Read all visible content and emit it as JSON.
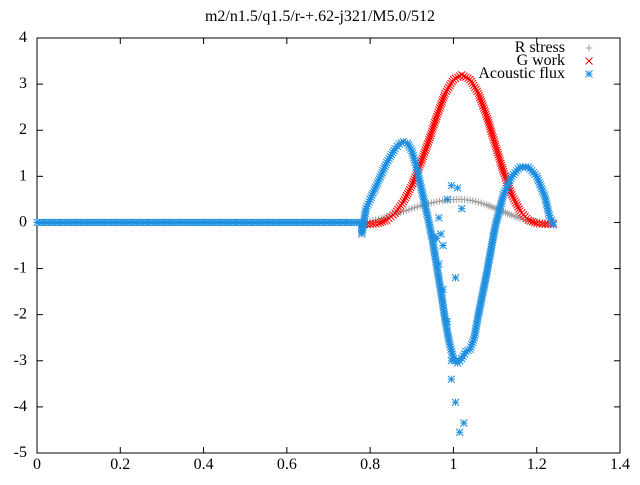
{
  "chart_data": {
    "type": "scatter",
    "title": "m2/n1.5/q1.5/r-+.62-j321/M5.0/512",
    "xlabel": "",
    "ylabel": "",
    "xlim": [
      0,
      1.4
    ],
    "ylim": [
      -5,
      4
    ],
    "x_ticks": [
      "0",
      "0.2",
      "0.4",
      "0.6",
      "0.8",
      "1",
      "1.2",
      "1.4"
    ],
    "y_ticks": [
      "4",
      "3",
      "2",
      "1",
      "0",
      "-1",
      "-2",
      "-3",
      "-4",
      "-5"
    ],
    "grid": false,
    "legend_position": "top-right",
    "series": [
      {
        "name": "R stress",
        "marker": "plus",
        "color": "#a0a0a0",
        "x": [
          0.78,
          0.8,
          0.82,
          0.84,
          0.86,
          0.88,
          0.9,
          0.92,
          0.94,
          0.96,
          0.98,
          1.0,
          1.02,
          1.04,
          1.06,
          1.08,
          1.1,
          1.12,
          1.14,
          1.16,
          1.18,
          1.2,
          1.22,
          1.24
        ],
        "y": [
          0.0,
          0.03,
          0.07,
          0.12,
          0.18,
          0.24,
          0.3,
          0.36,
          0.41,
          0.45,
          0.48,
          0.5,
          0.5,
          0.48,
          0.44,
          0.38,
          0.31,
          0.23,
          0.16,
          0.09,
          0.04,
          0.01,
          0.0,
          0.0
        ]
      },
      {
        "name": "G work",
        "marker": "cross",
        "color": "#ff0000",
        "x": [
          0.78,
          0.8,
          0.82,
          0.84,
          0.86,
          0.88,
          0.9,
          0.92,
          0.94,
          0.96,
          0.98,
          1.0,
          1.02,
          1.04,
          1.06,
          1.08,
          1.1,
          1.12,
          1.14,
          1.16,
          1.18,
          1.2,
          1.22,
          1.24
        ],
        "y": [
          -0.05,
          -0.04,
          -0.02,
          0.05,
          0.2,
          0.45,
          0.8,
          1.25,
          1.75,
          2.3,
          2.8,
          3.1,
          3.2,
          3.1,
          2.8,
          2.3,
          1.7,
          1.1,
          0.6,
          0.25,
          0.05,
          -0.02,
          -0.04,
          -0.03
        ]
      },
      {
        "name": "Acoustic flux",
        "marker": "star",
        "color": "#1e8fe0",
        "x": [
          0.0,
          0.05,
          0.1,
          0.15,
          0.2,
          0.25,
          0.3,
          0.35,
          0.4,
          0.45,
          0.5,
          0.55,
          0.6,
          0.65,
          0.7,
          0.75,
          0.78,
          0.78,
          0.79,
          0.8,
          0.82,
          0.84,
          0.86,
          0.87,
          0.88,
          0.89,
          0.9,
          0.91,
          0.92,
          0.93,
          0.94,
          0.95,
          0.96,
          0.97,
          0.98,
          0.99,
          1.0,
          1.01,
          1.02,
          1.03,
          1.04,
          1.05,
          1.06,
          1.08,
          1.1,
          1.12,
          1.14,
          1.16,
          1.18,
          1.2,
          1.22,
          1.23,
          1.24,
          0.955,
          0.965,
          0.975,
          0.985,
          0.995,
          1.005,
          1.015,
          1.025,
          0.96,
          0.97,
          0.985,
          0.995,
          1.01,
          1.02,
          0.965,
          0.975,
          0.995,
          1.005
        ],
        "y": [
          0.0,
          0.0,
          0.0,
          0.0,
          0.0,
          0.0,
          0.0,
          0.0,
          0.0,
          0.0,
          0.0,
          0.0,
          0.0,
          0.0,
          0.0,
          0.0,
          0.0,
          -0.25,
          0.3,
          0.5,
          0.9,
          1.3,
          1.6,
          1.7,
          1.75,
          1.72,
          1.55,
          1.25,
          0.85,
          0.45,
          0.05,
          -0.4,
          -0.95,
          -1.5,
          -2.1,
          -2.6,
          -2.95,
          -3.05,
          -2.95,
          -2.8,
          -2.75,
          -2.5,
          -2.0,
          -1.1,
          -0.1,
          0.6,
          1.0,
          1.2,
          1.2,
          1.0,
          0.55,
          0.15,
          -0.05,
          -0.3,
          -0.9,
          -1.45,
          -2.15,
          -3.0,
          -3.9,
          -4.55,
          -4.35,
          -0.35,
          -0.25,
          0.5,
          0.8,
          0.75,
          0.3,
          0.1,
          -0.5,
          -3.4,
          -1.2
        ]
      }
    ]
  }
}
